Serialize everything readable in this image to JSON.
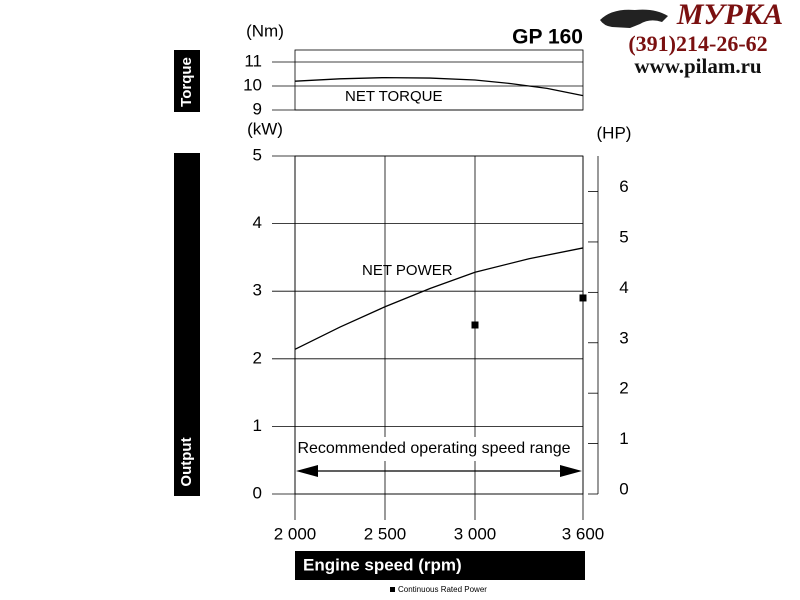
{
  "header": {
    "title": "GP 160",
    "brand": "МУРКА",
    "phone": "(391)214-26-62",
    "site": "www.pilam.ru"
  },
  "chart_data": [
    {
      "type": "line",
      "panel_label": "Torque",
      "ylabel": "(Nm)",
      "x": [
        2000,
        2250,
        2500,
        2750,
        3000,
        3200,
        3400,
        3600
      ],
      "xlim": [
        2000,
        3600
      ],
      "series": [
        {
          "name": "NET TORQUE",
          "color": "#000000",
          "values": [
            10.2,
            10.3,
            10.35,
            10.33,
            10.25,
            10.1,
            9.9,
            9.6
          ]
        }
      ],
      "ylim": [
        9,
        11.5
      ],
      "yticks": [
        9,
        10,
        11
      ],
      "grid": true
    },
    {
      "type": "line",
      "panel_label": "Output",
      "ylabel": "(kW)",
      "y2label": "(HP)",
      "xlabel": "Engine speed (rpm)",
      "x": [
        2000,
        2250,
        2500,
        2750,
        3000,
        3300,
        3600
      ],
      "xlim": [
        2000,
        3600
      ],
      "xticks": [
        {
          "value": 2000,
          "label": "2 000"
        },
        {
          "value": 2500,
          "label": "2 500"
        },
        {
          "value": 3000,
          "label": "3 000"
        },
        {
          "value": 3600,
          "label": "3 600"
        }
      ],
      "series": [
        {
          "name": "NET POWER",
          "color": "#000000",
          "values": [
            2.14,
            2.47,
            2.77,
            3.04,
            3.28,
            3.48,
            3.64
          ]
        },
        {
          "name": "Continuous Rated Power",
          "color": "#000000",
          "marker": "square",
          "x": [
            3000,
            3600
          ],
          "values": [
            2.5,
            2.9
          ]
        }
      ],
      "ylim": [
        0,
        5
      ],
      "yticks": [
        0,
        1,
        2,
        3,
        4,
        5
      ],
      "y2lim": [
        0,
        6.705
      ],
      "y2ticks": [
        0,
        1,
        2,
        3,
        4,
        5,
        6
      ],
      "annotation": "Recommended operating speed range",
      "grid": true
    }
  ]
}
